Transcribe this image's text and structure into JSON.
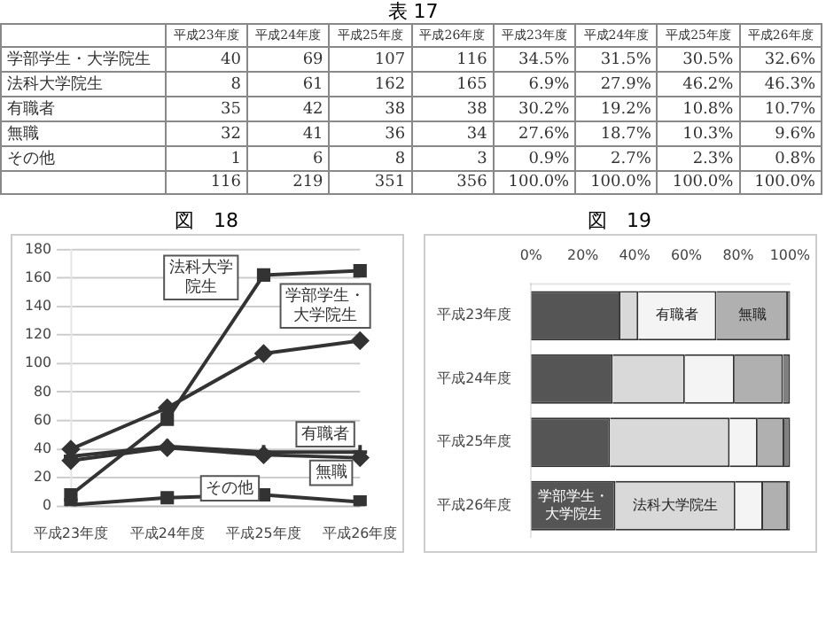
{
  "chart_data": [
    {
      "type": "other",
      "title": "表 17",
      "categories": [
        "平成23年度",
        "平成24年度",
        "平成25年度",
        "平成26年度",
        "平成23年度",
        "平成24年度",
        "平成25年度",
        "平成26年度"
      ],
      "y_categories": [
        "学部学生・大学院生",
        "法科大学院生",
        "有職者",
        "無職",
        "その他",
        null
      ],
      "cell_labels": [
        [
          "40",
          "69",
          "107",
          "116",
          "34.5%",
          "31.5%",
          "30.5%",
          "32.6%"
        ],
        [
          "8",
          "61",
          "162",
          "165",
          "6.9%",
          "27.9%",
          "46.2%",
          "46.3%"
        ],
        [
          "35",
          "42",
          "38",
          "38",
          "30.2%",
          "19.2%",
          "10.8%",
          "10.7%"
        ],
        [
          "32",
          "41",
          "36",
          "34",
          "27.6%",
          "18.7%",
          "10.3%",
          "9.6%"
        ],
        [
          "1",
          "6",
          "8",
          "3",
          "0.9%",
          "2.7%",
          "2.3%",
          "0.8%"
        ],
        [
          "116",
          "219",
          "351",
          "356",
          "100.0%",
          "100.0%",
          "100.0%",
          "100.0%"
        ]
      ]
    },
    {
      "type": "line",
      "title": "図　18",
      "categories": [
        "平成23年度",
        "平成24年度",
        "平成25年度",
        "平成26年度"
      ],
      "ylim": [
        0,
        180
      ],
      "yticks": [
        0,
        20,
        40,
        60,
        80,
        100,
        120,
        140,
        160,
        180
      ],
      "grid": "y",
      "legend": false,
      "series": [
        {
          "name": "学部学生・大学院生",
          "color": "#333333",
          "marker": "diamond",
          "values": [
            40,
            69,
            107,
            116
          ]
        },
        {
          "name": "法科大学院生",
          "color": "#333333",
          "marker": "square",
          "values": [
            8,
            61,
            162,
            165
          ]
        },
        {
          "name": "有職者",
          "color": "#333333",
          "marker": "cross",
          "values": [
            35,
            42,
            38,
            38
          ]
        },
        {
          "name": "無職",
          "color": "#333333",
          "marker": "diamond",
          "values": [
            32,
            41,
            36,
            34
          ]
        },
        {
          "name": "その他",
          "color": "#333333",
          "marker": "square",
          "values": [
            1,
            6,
            8,
            3
          ]
        }
      ]
    },
    {
      "type": "bar",
      "title": "図　19",
      "orientation": "horizontal",
      "stacked": true,
      "legend": false,
      "categories": [
        "平成23年度",
        "平成24年度",
        "平成25年度",
        "平成26年度"
      ],
      "xlim": [
        0,
        100
      ],
      "xticks": [
        {
          "value": 0,
          "label": "0%"
        },
        {
          "value": 20,
          "label": "20%"
        },
        {
          "value": 40,
          "label": "40%"
        },
        {
          "value": 60,
          "label": "60%"
        },
        {
          "value": 80,
          "label": "80%"
        },
        {
          "value": 100,
          "label": "100%"
        }
      ],
      "series": [
        {
          "name": "学部学生・大学院生",
          "color": "#555555",
          "values": [
            34.5,
            31.5,
            30.5,
            32.6
          ]
        },
        {
          "name": "法科大学院生",
          "color": "#d9d9d9",
          "values": [
            6.9,
            27.9,
            46.2,
            46.3
          ]
        },
        {
          "name": "有職者",
          "color": "#f4f4f4",
          "values": [
            30.2,
            19.2,
            10.8,
            10.7
          ]
        },
        {
          "name": "無職",
          "color": "#b0b0b0",
          "values": [
            27.6,
            18.7,
            10.3,
            9.6
          ]
        },
        {
          "color": "#808080",
          "values": [
            0.9,
            2.7,
            2.3,
            0.8
          ]
        }
      ]
    }
  ]
}
